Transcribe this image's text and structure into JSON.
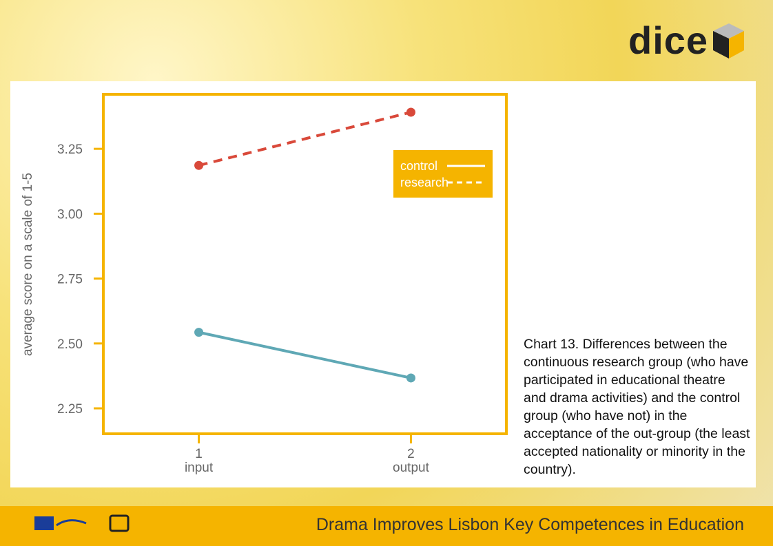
{
  "brand": "dice",
  "chart_data": {
    "type": "line",
    "y_label": "average score on a scale of 1-5",
    "x": [
      1,
      2
    ],
    "xtick_sublabels": [
      "input",
      "output"
    ],
    "xlim": [
      0.55,
      2.45
    ],
    "xticks": [
      1,
      2
    ],
    "ylim": [
      2.152,
      3.46
    ],
    "yticks": [
      {
        "value": 2.25,
        "label": "2.25"
      },
      {
        "value": 2.5,
        "label": "2.50"
      },
      {
        "value": 2.75,
        "label": "2.75"
      },
      {
        "value": 3,
        "label": "3.00"
      },
      {
        "value": 3.25,
        "label": "3.25"
      }
    ],
    "legend_position": "upper right",
    "series": [
      {
        "name": "control",
        "color": "#5fa8b5",
        "line_style": "solid",
        "values": [
          2.543,
          2.367
        ]
      },
      {
        "name": "research",
        "color": "#d9493a",
        "line_style": "dashed",
        "values": [
          3.186,
          3.391
        ]
      }
    ]
  },
  "caption": "Chart 13. Differences between the continuous research group (who have participated in educational theatre and drama activities) and the control group (who have not) in the acceptance of the out-group (the least accepted nationality or minority in the country).",
  "footer": "Drama Improves Lisbon Key Competences in Education"
}
